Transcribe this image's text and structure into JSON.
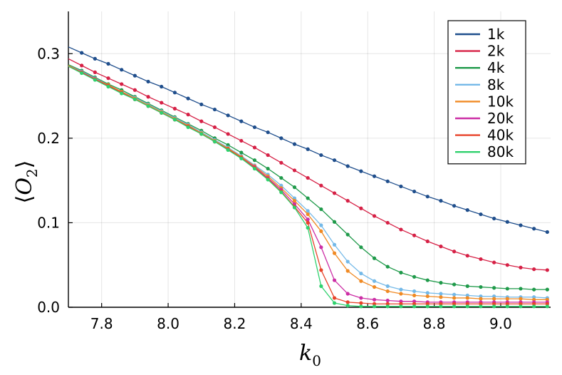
{
  "chart_data": {
    "type": "line",
    "title": "",
    "xlabel": "k",
    "xlabel_sub": "0",
    "ylabel": "O",
    "ylabel_sub": "2",
    "ylabel_left_bracket": "⟨",
    "ylabel_right_bracket": "⟩",
    "xlim": [
      7.7,
      9.15
    ],
    "ylim": [
      0.0,
      0.35
    ],
    "x_ticks": [
      7.8,
      8.0,
      8.2,
      8.4,
      8.6,
      8.8,
      9.0
    ],
    "x_tick_labels": [
      "7.8",
      "8.0",
      "8.2",
      "8.4",
      "8.6",
      "8.8",
      "9.0"
    ],
    "y_ticks": [
      0.0,
      0.1,
      0.2,
      0.3
    ],
    "y_tick_labels": [
      "0.0",
      "0.1",
      "0.2",
      "0.3"
    ],
    "grid": true,
    "legend_position": "top-right",
    "x": [
      7.7,
      7.74,
      7.78,
      7.82,
      7.86,
      7.9,
      7.94,
      7.98,
      8.02,
      8.06,
      8.1,
      8.14,
      8.18,
      8.22,
      8.26,
      8.3,
      8.34,
      8.38,
      8.42,
      8.46,
      8.5,
      8.54,
      8.58,
      8.62,
      8.66,
      8.7,
      8.74,
      8.78,
      8.82,
      8.86,
      8.9,
      8.94,
      8.98,
      9.02,
      9.06,
      9.1,
      9.14
    ],
    "series": [
      {
        "name": "1k",
        "color": "#1f4e8c",
        "values": [
          0.308,
          0.301,
          0.294,
          0.288,
          0.281,
          0.274,
          0.267,
          0.261,
          0.254,
          0.247,
          0.24,
          0.234,
          0.227,
          0.22,
          0.213,
          0.207,
          0.2,
          0.193,
          0.187,
          0.18,
          0.174,
          0.167,
          0.161,
          0.155,
          0.149,
          0.143,
          0.137,
          0.131,
          0.126,
          0.12,
          0.115,
          0.11,
          0.105,
          0.101,
          0.097,
          0.093,
          0.089
        ]
      },
      {
        "name": "2k",
        "color": "#d62045",
        "values": [
          0.294,
          0.286,
          0.278,
          0.271,
          0.264,
          0.257,
          0.249,
          0.242,
          0.235,
          0.228,
          0.22,
          0.213,
          0.205,
          0.197,
          0.189,
          0.18,
          0.171,
          0.162,
          0.153,
          0.144,
          0.135,
          0.126,
          0.117,
          0.108,
          0.1,
          0.092,
          0.085,
          0.078,
          0.072,
          0.066,
          0.061,
          0.057,
          0.053,
          0.05,
          0.047,
          0.045,
          0.044
        ]
      },
      {
        "name": "4k",
        "color": "#1f9a4a",
        "values": [
          0.287,
          0.28,
          0.272,
          0.264,
          0.257,
          0.249,
          0.241,
          0.233,
          0.225,
          0.217,
          0.209,
          0.2,
          0.192,
          0.183,
          0.174,
          0.164,
          0.153,
          0.142,
          0.129,
          0.116,
          0.101,
          0.086,
          0.071,
          0.058,
          0.048,
          0.041,
          0.036,
          0.032,
          0.029,
          0.027,
          0.025,
          0.024,
          0.023,
          0.022,
          0.022,
          0.021,
          0.021
        ]
      },
      {
        "name": "8k",
        "color": "#74b9e8",
        "values": [
          0.286,
          0.279,
          0.271,
          0.263,
          0.255,
          0.248,
          0.24,
          0.232,
          0.224,
          0.216,
          0.207,
          0.198,
          0.189,
          0.179,
          0.168,
          0.157,
          0.144,
          0.129,
          0.114,
          0.097,
          0.074,
          0.054,
          0.04,
          0.031,
          0.025,
          0.021,
          0.019,
          0.017,
          0.016,
          0.015,
          0.014,
          0.013,
          0.013,
          0.012,
          0.012,
          0.012,
          0.011
        ]
      },
      {
        "name": "10k",
        "color": "#f08a24",
        "values": [
          0.286,
          0.278,
          0.27,
          0.263,
          0.255,
          0.247,
          0.239,
          0.231,
          0.223,
          0.215,
          0.206,
          0.197,
          0.188,
          0.178,
          0.167,
          0.155,
          0.141,
          0.126,
          0.11,
          0.09,
          0.064,
          0.043,
          0.031,
          0.024,
          0.019,
          0.016,
          0.014,
          0.013,
          0.012,
          0.011,
          0.011,
          0.01,
          0.01,
          0.01,
          0.01,
          0.009,
          0.009
        ]
      },
      {
        "name": "20k",
        "color": "#cc2ea5",
        "values": [
          0.285,
          0.278,
          0.27,
          0.262,
          0.254,
          0.246,
          0.238,
          0.23,
          0.222,
          0.214,
          0.205,
          0.196,
          0.187,
          0.177,
          0.166,
          0.153,
          0.139,
          0.122,
          0.104,
          0.071,
          0.032,
          0.016,
          0.011,
          0.009,
          0.008,
          0.007,
          0.007,
          0.006,
          0.006,
          0.006,
          0.006,
          0.006,
          0.006,
          0.006,
          0.006,
          0.006,
          0.006
        ]
      },
      {
        "name": "40k",
        "color": "#e8432a",
        "values": [
          0.285,
          0.278,
          0.27,
          0.262,
          0.254,
          0.246,
          0.238,
          0.23,
          0.222,
          0.214,
          0.205,
          0.196,
          0.187,
          0.177,
          0.165,
          0.152,
          0.137,
          0.119,
          0.1,
          0.044,
          0.011,
          0.006,
          0.005,
          0.004,
          0.004,
          0.004,
          0.004,
          0.004,
          0.004,
          0.004,
          0.004,
          0.004,
          0.004,
          0.004,
          0.004,
          0.004,
          0.004
        ]
      },
      {
        "name": "80k",
        "color": "#2fd16d",
        "values": [
          0.285,
          0.277,
          0.269,
          0.261,
          0.253,
          0.246,
          0.238,
          0.23,
          0.222,
          0.213,
          0.205,
          0.196,
          0.186,
          0.176,
          0.164,
          0.151,
          0.136,
          0.118,
          0.094,
          0.025,
          0.005,
          0.002,
          0.001,
          0.001,
          0.001,
          0.001,
          0.001,
          0.001,
          0.001,
          0.001,
          0.001,
          0.001,
          0.001,
          0.001,
          0.001,
          0.001,
          0.001
        ]
      }
    ]
  }
}
